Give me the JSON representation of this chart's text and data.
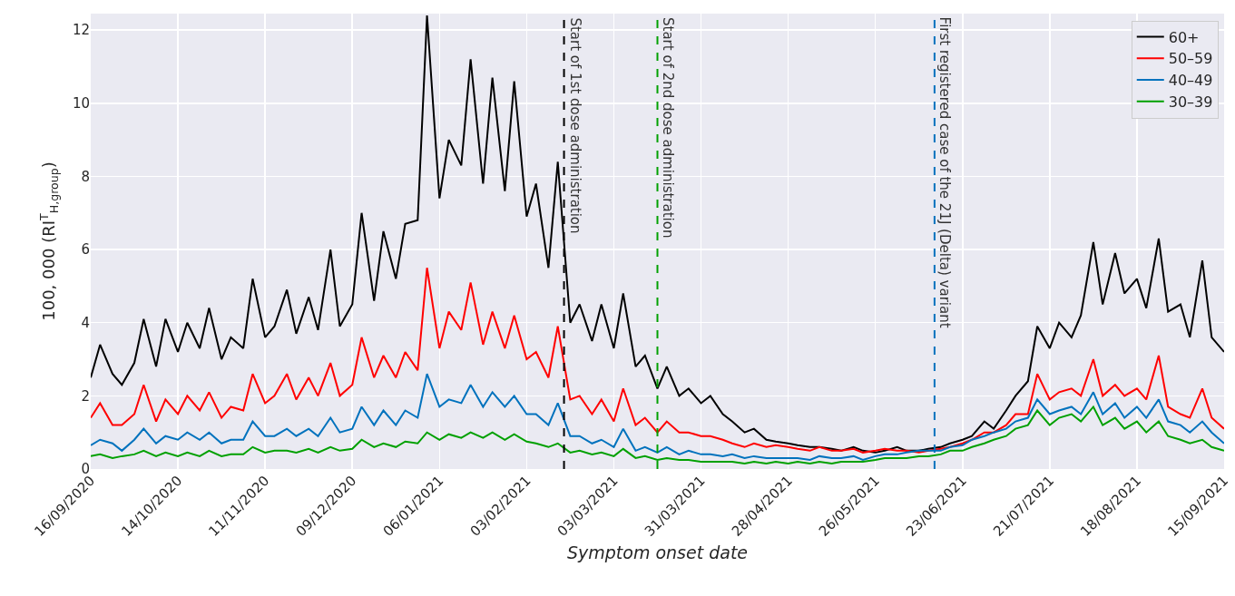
{
  "chart_data": {
    "type": "line",
    "xlabel": "Symptom onset date",
    "ylabel": "100, 000 (RI$^{T}$$_{H,group}$)",
    "x": [
      "2020-09-16",
      "2020-09-19",
      "2020-09-23",
      "2020-09-26",
      "2020-09-30",
      "2020-10-03",
      "2020-10-07",
      "2020-10-10",
      "2020-10-14",
      "2020-10-17",
      "2020-10-21",
      "2020-10-24",
      "2020-10-28",
      "2020-10-31",
      "2020-11-04",
      "2020-11-07",
      "2020-11-11",
      "2020-11-14",
      "2020-11-18",
      "2020-11-21",
      "2020-11-25",
      "2020-11-28",
      "2020-12-02",
      "2020-12-05",
      "2020-12-09",
      "2020-12-12",
      "2020-12-16",
      "2020-12-19",
      "2020-12-23",
      "2020-12-26",
      "2020-12-30",
      "2021-01-02",
      "2021-01-06",
      "2021-01-09",
      "2021-01-13",
      "2021-01-16",
      "2021-01-20",
      "2021-01-23",
      "2021-01-27",
      "2021-01-30",
      "2021-02-03",
      "2021-02-06",
      "2021-02-10",
      "2021-02-13",
      "2021-02-17",
      "2021-02-20",
      "2021-02-24",
      "2021-02-27",
      "2021-03-03",
      "2021-03-06",
      "2021-03-10",
      "2021-03-13",
      "2021-03-17",
      "2021-03-20",
      "2021-03-24",
      "2021-03-27",
      "2021-03-31",
      "2021-04-03",
      "2021-04-07",
      "2021-04-10",
      "2021-04-14",
      "2021-04-17",
      "2021-04-21",
      "2021-04-24",
      "2021-04-28",
      "2021-05-01",
      "2021-05-05",
      "2021-05-08",
      "2021-05-12",
      "2021-05-15",
      "2021-05-19",
      "2021-05-22",
      "2021-05-26",
      "2021-05-29",
      "2021-06-02",
      "2021-06-05",
      "2021-06-09",
      "2021-06-12",
      "2021-06-16",
      "2021-06-19",
      "2021-06-23",
      "2021-06-26",
      "2021-06-30",
      "2021-07-03",
      "2021-07-07",
      "2021-07-10",
      "2021-07-14",
      "2021-07-17",
      "2021-07-21",
      "2021-07-24",
      "2021-07-28",
      "2021-07-31",
      "2021-08-04",
      "2021-08-07",
      "2021-08-11",
      "2021-08-14",
      "2021-08-18",
      "2021-08-21",
      "2021-08-25",
      "2021-08-28",
      "2021-09-01",
      "2021-09-04",
      "2021-09-08",
      "2021-09-11",
      "2021-09-15"
    ],
    "series": [
      {
        "name": "60+",
        "color": "#000000",
        "values": [
          2.5,
          3.4,
          2.6,
          2.3,
          2.9,
          4.1,
          2.8,
          4.1,
          3.2,
          4.0,
          3.3,
          4.4,
          3.0,
          3.6,
          3.3,
          5.2,
          3.6,
          3.9,
          4.9,
          3.7,
          4.7,
          3.8,
          6.0,
          3.9,
          4.5,
          7.0,
          4.6,
          6.5,
          5.2,
          6.7,
          6.8,
          12.4,
          7.4,
          9.0,
          8.3,
          11.2,
          7.8,
          10.7,
          7.6,
          10.6,
          6.9,
          7.8,
          5.5,
          8.4,
          4.0,
          4.5,
          3.5,
          4.5,
          3.3,
          4.8,
          2.8,
          3.1,
          2.2,
          2.8,
          2.0,
          2.2,
          1.8,
          2.0,
          1.5,
          1.3,
          1.0,
          1.1,
          0.8,
          0.75,
          0.7,
          0.65,
          0.6,
          0.6,
          0.55,
          0.5,
          0.6,
          0.5,
          0.45,
          0.5,
          0.6,
          0.5,
          0.5,
          0.55,
          0.6,
          0.7,
          0.8,
          0.9,
          1.3,
          1.1,
          1.6,
          2.0,
          2.4,
          3.9,
          3.3,
          4.0,
          3.6,
          4.2,
          6.2,
          4.5,
          5.9,
          4.8,
          5.2,
          4.4,
          6.3,
          4.3,
          4.5,
          3.6,
          5.7,
          3.6,
          3.2
        ]
      },
      {
        "name": "50–59",
        "color": "#ff0000",
        "values": [
          1.4,
          1.8,
          1.2,
          1.2,
          1.5,
          2.3,
          1.3,
          1.9,
          1.5,
          2.0,
          1.6,
          2.1,
          1.4,
          1.7,
          1.6,
          2.6,
          1.8,
          2.0,
          2.6,
          1.9,
          2.5,
          2.0,
          2.9,
          2.0,
          2.3,
          3.6,
          2.5,
          3.1,
          2.5,
          3.2,
          2.7,
          5.5,
          3.3,
          4.3,
          3.8,
          5.1,
          3.4,
          4.3,
          3.3,
          4.2,
          3.0,
          3.2,
          2.5,
          3.9,
          1.9,
          2.0,
          1.5,
          1.9,
          1.3,
          2.2,
          1.2,
          1.4,
          1.0,
          1.3,
          1.0,
          1.0,
          0.9,
          0.9,
          0.8,
          0.7,
          0.6,
          0.7,
          0.6,
          0.65,
          0.6,
          0.55,
          0.5,
          0.6,
          0.5,
          0.5,
          0.55,
          0.45,
          0.5,
          0.55,
          0.5,
          0.5,
          0.45,
          0.5,
          0.55,
          0.6,
          0.7,
          0.8,
          1.0,
          1.0,
          1.2,
          1.5,
          1.5,
          2.6,
          1.9,
          2.1,
          2.2,
          2.0,
          3.0,
          2.0,
          2.3,
          2.0,
          2.2,
          1.9,
          3.1,
          1.7,
          1.5,
          1.4,
          2.2,
          1.4,
          1.1
        ]
      },
      {
        "name": "40–49",
        "color": "#0072bd",
        "values": [
          0.65,
          0.8,
          0.7,
          0.5,
          0.8,
          1.1,
          0.7,
          0.9,
          0.8,
          1.0,
          0.8,
          1.0,
          0.7,
          0.8,
          0.8,
          1.3,
          0.9,
          0.9,
          1.1,
          0.9,
          1.1,
          0.9,
          1.4,
          1.0,
          1.1,
          1.7,
          1.2,
          1.6,
          1.2,
          1.6,
          1.4,
          2.6,
          1.7,
          1.9,
          1.8,
          2.3,
          1.7,
          2.1,
          1.7,
          2.0,
          1.5,
          1.5,
          1.2,
          1.8,
          0.9,
          0.9,
          0.7,
          0.8,
          0.6,
          1.1,
          0.5,
          0.6,
          0.45,
          0.6,
          0.4,
          0.5,
          0.4,
          0.4,
          0.35,
          0.4,
          0.3,
          0.35,
          0.3,
          0.3,
          0.3,
          0.3,
          0.25,
          0.35,
          0.3,
          0.3,
          0.35,
          0.25,
          0.35,
          0.4,
          0.4,
          0.45,
          0.5,
          0.5,
          0.5,
          0.6,
          0.65,
          0.8,
          0.9,
          1.0,
          1.1,
          1.3,
          1.4,
          1.9,
          1.5,
          1.6,
          1.7,
          1.5,
          2.1,
          1.5,
          1.8,
          1.4,
          1.7,
          1.4,
          1.9,
          1.3,
          1.2,
          1.0,
          1.3,
          1.0,
          0.7
        ]
      },
      {
        "name": "30–39",
        "color": "#00a000",
        "values": [
          0.35,
          0.4,
          0.3,
          0.35,
          0.4,
          0.5,
          0.35,
          0.45,
          0.35,
          0.45,
          0.35,
          0.5,
          0.35,
          0.4,
          0.4,
          0.6,
          0.45,
          0.5,
          0.5,
          0.45,
          0.55,
          0.45,
          0.6,
          0.5,
          0.55,
          0.8,
          0.6,
          0.7,
          0.6,
          0.75,
          0.7,
          1.0,
          0.8,
          0.95,
          0.85,
          1.0,
          0.85,
          1.0,
          0.8,
          0.95,
          0.75,
          0.7,
          0.6,
          0.7,
          0.45,
          0.5,
          0.4,
          0.45,
          0.35,
          0.55,
          0.3,
          0.35,
          0.25,
          0.3,
          0.25,
          0.25,
          0.2,
          0.2,
          0.2,
          0.2,
          0.15,
          0.2,
          0.15,
          0.2,
          0.15,
          0.2,
          0.15,
          0.2,
          0.15,
          0.2,
          0.2,
          0.2,
          0.25,
          0.3,
          0.3,
          0.3,
          0.35,
          0.35,
          0.4,
          0.5,
          0.5,
          0.6,
          0.7,
          0.8,
          0.9,
          1.1,
          1.2,
          1.6,
          1.2,
          1.4,
          1.5,
          1.3,
          1.7,
          1.2,
          1.4,
          1.1,
          1.3,
          1.0,
          1.3,
          0.9,
          0.8,
          0.7,
          0.8,
          0.6,
          0.5
        ]
      }
    ],
    "xlim": [
      "2020-09-16",
      "2021-09-15"
    ],
    "xticks": [
      {
        "value": "2020-09-16",
        "label": "16/09/2020"
      },
      {
        "value": "2020-10-14",
        "label": "14/10/2020"
      },
      {
        "value": "2020-11-11",
        "label": "11/11/2020"
      },
      {
        "value": "2020-12-09",
        "label": "09/12/2020"
      },
      {
        "value": "2021-01-06",
        "label": "06/01/2021"
      },
      {
        "value": "2021-02-03",
        "label": "03/02/2021"
      },
      {
        "value": "2021-03-03",
        "label": "03/03/2021"
      },
      {
        "value": "2021-03-31",
        "label": "31/03/2021"
      },
      {
        "value": "2021-04-28",
        "label": "28/04/2021"
      },
      {
        "value": "2021-05-26",
        "label": "26/05/2021"
      },
      {
        "value": "2021-06-23",
        "label": "23/06/2021"
      },
      {
        "value": "2021-07-21",
        "label": "21/07/2021"
      },
      {
        "value": "2021-08-18",
        "label": "18/08/2021"
      },
      {
        "value": "2021-09-15",
        "label": "15/09/2021"
      }
    ],
    "ylim": [
      0,
      12.45
    ],
    "yticks": [
      0,
      2,
      4,
      6,
      8,
      10,
      12
    ],
    "ref_lines": [
      {
        "axis": "x",
        "value": "2021-02-15",
        "label": "Start of 1st dose administration",
        "color": "#000000",
        "line_style": "dashed"
      },
      {
        "axis": "x",
        "value": "2021-03-17",
        "label": "Start of 2nd dose administration",
        "color": "#00a000",
        "line_style": "dashed"
      },
      {
        "axis": "x",
        "value": "2021-06-14",
        "label": "First registered case of the 21J (Delta) variant",
        "color": "#0072bd",
        "line_style": "dashed"
      }
    ],
    "grid": true,
    "legend": "top right",
    "marker": "none",
    "line_style": "solid"
  }
}
